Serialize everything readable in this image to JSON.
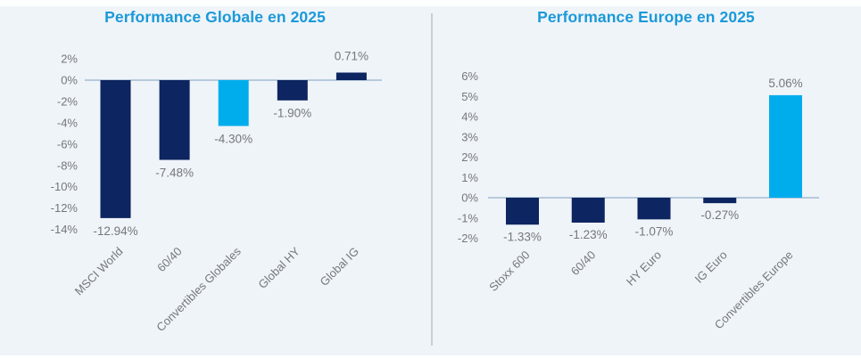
{
  "colors": {
    "background": "#eff4f9",
    "navy": "#0d2560",
    "highlight": "#00adec",
    "title_blue": "#1b99d8",
    "label_gray": "#75777b",
    "axis_line": "#a4bcd2",
    "divider": "#caced3"
  },
  "chart_data": [
    {
      "type": "bar",
      "title": "Performance Globale en 2025",
      "categories": [
        "MSCI World",
        "60/40",
        "Convertibles Globales",
        "Global HY",
        "Global IG"
      ],
      "values": [
        -12.94,
        -7.48,
        -4.3,
        -1.9,
        0.71
      ],
      "data_labels": [
        "-12.94%",
        "-7.48%",
        "-4.30%",
        "-1.90%",
        "0.71%"
      ],
      "bar_color_roles": [
        "navy",
        "navy",
        "highlight",
        "navy",
        "navy"
      ],
      "yticks": [
        2,
        0,
        -2,
        -4,
        -6,
        -8,
        -10,
        -12,
        -14
      ],
      "ytick_labels": [
        "2%",
        "0%",
        "-2%",
        "-4%",
        "-6%",
        "-8%",
        "-10%",
        "-12%",
        "-14%"
      ],
      "ylim": [
        -14,
        2
      ],
      "grid": false,
      "legend": null,
      "xlabel": "",
      "ylabel": ""
    },
    {
      "type": "bar",
      "title": "Performance Europe en 2025",
      "categories": [
        "Stoxx 600",
        "60/40",
        "HY Euro",
        "IG Euro",
        "Convertibles Europe"
      ],
      "values": [
        -1.33,
        -1.23,
        -1.07,
        -0.27,
        5.06
      ],
      "data_labels": [
        "-1.33%",
        "-1.23%",
        "-1.07%",
        "-0.27%",
        "5.06%"
      ],
      "bar_color_roles": [
        "navy",
        "navy",
        "navy",
        "navy",
        "highlight"
      ],
      "yticks": [
        6,
        5,
        4,
        3,
        2,
        1,
        0,
        -1,
        -2
      ],
      "ytick_labels": [
        "6%",
        "5%",
        "4%",
        "3%",
        "2%",
        "1%",
        "0%",
        "-1%",
        "-2%"
      ],
      "ylim": [
        -2,
        6
      ],
      "grid": false,
      "legend": null,
      "xlabel": "",
      "ylabel": ""
    }
  ]
}
